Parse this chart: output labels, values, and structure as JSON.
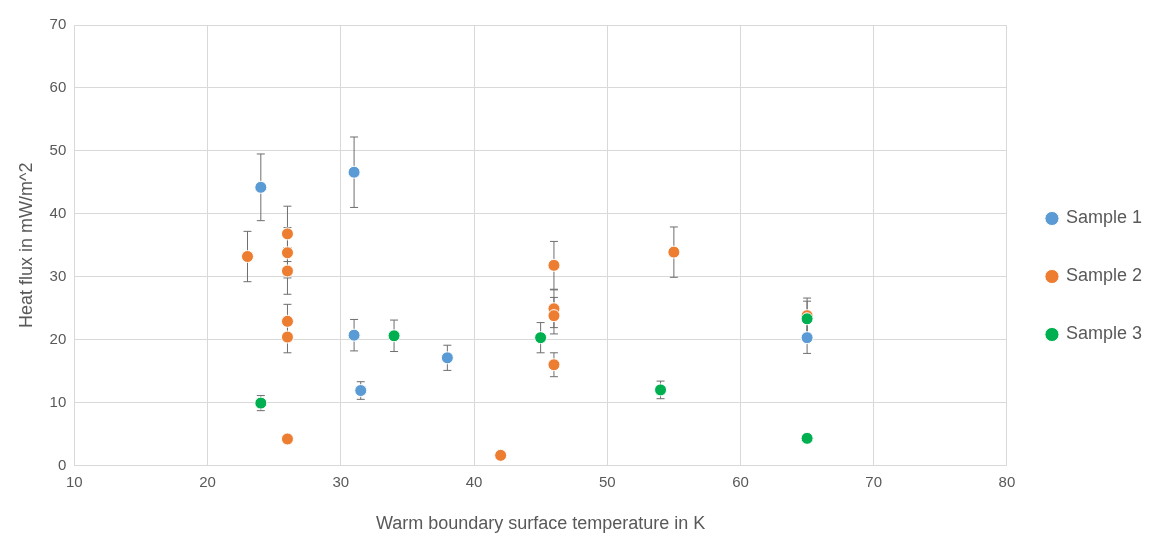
{
  "chart_data": {
    "type": "scatter",
    "xlabel": "Warm boundary surface temperature in K",
    "ylabel": "Heat flux in mW/m^2",
    "xlim": [
      10,
      80
    ],
    "xticks": [
      10,
      20,
      30,
      40,
      50,
      60,
      70,
      80
    ],
    "ylim": [
      0,
      70
    ],
    "yticks": [
      0,
      10,
      20,
      30,
      40,
      50,
      60,
      70
    ],
    "grid": true,
    "legend": "right",
    "marker": "circle",
    "series": [
      {
        "name": "Sample 1",
        "color": "#5b9bd5",
        "x": [
          24,
          31,
          31,
          31.5,
          38,
          65
        ],
        "values": [
          44.2,
          46.6,
          20.7,
          11.9,
          17.1,
          20.3
        ],
        "errors": [
          5.3,
          5.6,
          2.5,
          1.4,
          2.0,
          2.5
        ]
      },
      {
        "name": "Sample 2",
        "color": "#ed7d31",
        "x": [
          23,
          26,
          26,
          26,
          26,
          26,
          26,
          42,
          46,
          46,
          46,
          46,
          55,
          65
        ],
        "values": [
          33.2,
          36.8,
          33.8,
          30.9,
          22.9,
          20.4,
          4.2,
          1.6,
          31.8,
          24.9,
          23.8,
          16,
          33.9,
          23.8
        ],
        "errors": [
          4,
          4.4,
          4,
          3.7,
          2.7,
          2.5,
          null,
          null,
          3.8,
          3,
          2.9,
          1.9,
          4,
          2.8
        ]
      },
      {
        "name": "Sample 3",
        "color": "#00b050",
        "x": [
          24,
          34,
          45,
          54,
          65,
          65
        ],
        "values": [
          9.9,
          20.6,
          20.3,
          12,
          23.3,
          4.3
        ],
        "errors": [
          1.2,
          2.5,
          2.4,
          1.4,
          2.8,
          null
        ]
      }
    ]
  }
}
